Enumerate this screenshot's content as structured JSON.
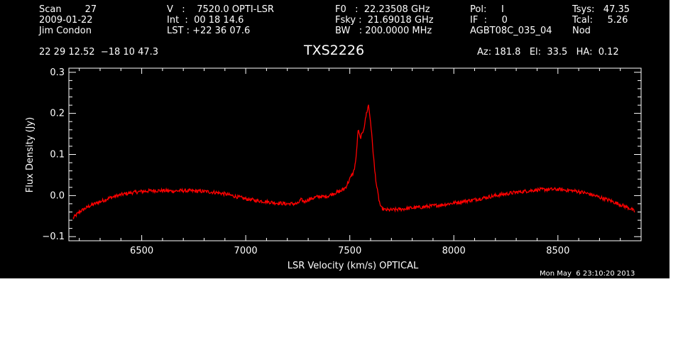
{
  "header": {
    "row1": {
      "scan": "Scan        27",
      "velocity": "V   :    7520.0 OPTI-LSR",
      "f0": "F0   :  22.23508 GHz",
      "pol": "Pol:     I",
      "tsys": "Tsys:   47.35"
    },
    "row2": {
      "date": "2009-01-22",
      "int": "Int  :  00 18 14.6",
      "fsky": "Fsky :  21.69018 GHz",
      "if": "IF  :     0",
      "tcal": "Tcal:     5.26"
    },
    "row3": {
      "observer": "Jim Condon",
      "lst": "LST : +22 36 07.6",
      "bw": "BW   : 200.0000 MHz",
      "project": "AGBT08C_035_04",
      "procedure": "Nod"
    },
    "coords": "22 29 12.52  −18 10 47.3",
    "source": "TXS2226",
    "azel": "Az: 181.8   El:  33.5   HA:  0.12"
  },
  "timestamp": "Mon May  6 23:10:20 2013",
  "colors": {
    "background": "#000000",
    "foreground": "#ffffff",
    "series": "#ff0000"
  },
  "chart_data": {
    "type": "line",
    "xlabel": "LSR Velocity (km/s) OPTICAL",
    "ylabel": "Flux Density (Jy)",
    "xlim": [
      6150,
      8900
    ],
    "ylim": [
      -0.11,
      0.31
    ],
    "xticks": [
      6500,
      7000,
      7500,
      8000,
      8500
    ],
    "xtick_labels": [
      "6500",
      "7000",
      "7500",
      "8000",
      "8500"
    ],
    "yticks": [
      -0.1,
      0.0,
      0.1,
      0.2,
      0.3
    ],
    "ytick_labels": [
      "−0.1",
      "0.0",
      "0.1",
      "0.2",
      "0.3"
    ],
    "grid": false,
    "series": [
      {
        "x": [
          6170,
          6200,
          6250,
          6300,
          6350,
          6400,
          6450,
          6500,
          6550,
          6600,
          6650,
          6700,
          6750,
          6800,
          6850,
          6900,
          6950,
          7000,
          7050,
          7100,
          7150,
          7200,
          7250,
          7265,
          7280,
          7300,
          7350,
          7380,
          7400,
          7420,
          7440,
          7460,
          7480,
          7500,
          7520,
          7530,
          7540,
          7550,
          7560,
          7570,
          7580,
          7590,
          7600,
          7610,
          7620,
          7630,
          7640,
          7650,
          7670,
          7700,
          7750,
          7800,
          7850,
          7900,
          7950,
          8000,
          8050,
          8100,
          8150,
          8200,
          8250,
          8300,
          8350,
          8400,
          8450,
          8500,
          8550,
          8600,
          8650,
          8700,
          8750,
          8800,
          8850,
          8870
        ],
        "y": [
          -0.055,
          -0.04,
          -0.025,
          -0.015,
          -0.005,
          0.002,
          0.007,
          0.01,
          0.012,
          0.012,
          0.011,
          0.012,
          0.011,
          0.01,
          0.008,
          0.004,
          -0.002,
          -0.008,
          -0.012,
          -0.015,
          -0.018,
          -0.02,
          -0.02,
          -0.01,
          -0.015,
          -0.01,
          -0.002,
          -0.003,
          0.0,
          0.005,
          0.008,
          0.012,
          0.02,
          0.04,
          0.06,
          0.09,
          0.16,
          0.14,
          0.15,
          0.17,
          0.2,
          0.22,
          0.18,
          0.12,
          0.06,
          0.02,
          -0.01,
          -0.03,
          -0.035,
          -0.035,
          -0.033,
          -0.03,
          -0.028,
          -0.025,
          -0.022,
          -0.018,
          -0.014,
          -0.01,
          -0.005,
          0.0,
          0.004,
          0.008,
          0.011,
          0.014,
          0.015,
          0.015,
          0.013,
          0.01,
          0.004,
          -0.004,
          -0.012,
          -0.022,
          -0.032,
          -0.04
        ]
      }
    ]
  }
}
